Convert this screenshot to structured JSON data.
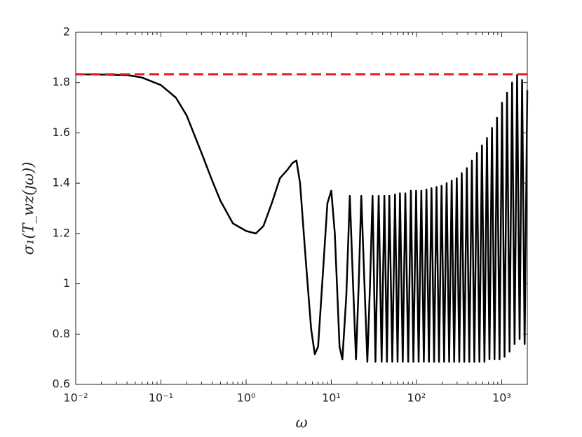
{
  "chart_data": {
    "type": "line",
    "x_label": "ω",
    "y_label": "σ₁(T_wz(ȷω))",
    "xscale": "log",
    "xlim": [
      0.01,
      2000
    ],
    "ylim": [
      0.6,
      2
    ],
    "xticks": [
      {
        "value": 0.01,
        "label": "10⁻²"
      },
      {
        "value": 0.1,
        "label": "10⁻¹"
      },
      {
        "value": 1,
        "label": "10⁰"
      },
      {
        "value": 10,
        "label": "10¹"
      },
      {
        "value": 100,
        "label": "10²"
      },
      {
        "value": 1000,
        "label": "10³"
      }
    ],
    "yticks": [
      0.6,
      0.8,
      1,
      1.2,
      1.4,
      1.6,
      1.8,
      2
    ],
    "grid": false,
    "series": [
      {
        "color": "#000000",
        "dash": false,
        "x": [
          0.01,
          0.02,
          0.04,
          0.06,
          0.1,
          0.15,
          0.2,
          0.3,
          0.4,
          0.5,
          0.7,
          1.0,
          1.3,
          1.6,
          2.0,
          2.5,
          3.0,
          3.5,
          3.9,
          4.3,
          5.0,
          5.8,
          6.4,
          7.0,
          8.0,
          9.0,
          10,
          11,
          12.5,
          13.5,
          15,
          16.5,
          18,
          19.5,
          21,
          22.5,
          24.5,
          26.5,
          28.5,
          30.5,
          33,
          36,
          39,
          42,
          45,
          48,
          52,
          56,
          60,
          64,
          69,
          74,
          80,
          86,
          92,
          99,
          106,
          114,
          122,
          131,
          140,
          150,
          161,
          172,
          184,
          197,
          211,
          226,
          242,
          259,
          277,
          297,
          318,
          340,
          364,
          390,
          417,
          447,
          478,
          512,
          548,
          587,
          628,
          672,
          719,
          770,
          824,
          882,
          944,
          1010,
          1081,
          1157,
          1238,
          1325,
          1418,
          1518,
          1624,
          1738,
          1860,
          2000
        ],
        "values": [
          1.833,
          1.832,
          1.83,
          1.82,
          1.79,
          1.74,
          1.67,
          1.52,
          1.41,
          1.33,
          1.24,
          1.21,
          1.2,
          1.23,
          1.32,
          1.42,
          1.45,
          1.48,
          1.49,
          1.4,
          1.1,
          0.82,
          0.72,
          0.75,
          1.05,
          1.32,
          1.37,
          1.2,
          0.75,
          0.7,
          0.95,
          1.35,
          1.0,
          0.7,
          1.0,
          1.35,
          1.0,
          0.69,
          1.0,
          1.35,
          0.69,
          1.35,
          0.69,
          1.35,
          0.69,
          1.35,
          0.69,
          1.355,
          0.69,
          1.36,
          0.69,
          1.36,
          0.69,
          1.37,
          0.69,
          1.37,
          0.69,
          1.37,
          0.69,
          1.375,
          0.69,
          1.38,
          0.69,
          1.385,
          0.69,
          1.39,
          0.69,
          1.4,
          0.69,
          1.41,
          0.69,
          1.42,
          0.69,
          1.44,
          0.69,
          1.46,
          0.69,
          1.49,
          0.69,
          1.52,
          0.69,
          1.55,
          0.69,
          1.58,
          0.7,
          1.62,
          0.7,
          1.66,
          0.7,
          1.72,
          0.71,
          1.76,
          0.73,
          1.8,
          0.76,
          1.83,
          0.78,
          1.81,
          0.76,
          1.77
        ]
      },
      {
        "color": "#e41a1c",
        "dash": true,
        "x": [
          0.01,
          2000
        ],
        "values": [
          1.833,
          1.833
        ]
      }
    ]
  }
}
